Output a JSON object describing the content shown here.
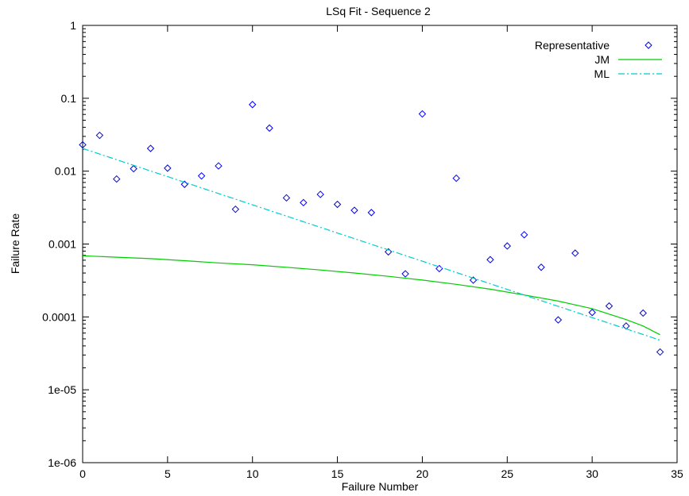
{
  "chart_data": {
    "type": "scatter",
    "title": "LSq Fit - Sequence 2",
    "xlabel": "Failure Number",
    "ylabel": "Failure Rate",
    "xlim": [
      0,
      35
    ],
    "ylim": [
      1e-06,
      1
    ],
    "yscale": "log",
    "grid": false,
    "legend_position": "top-right",
    "x_ticks": [
      0,
      5,
      10,
      15,
      20,
      25,
      30,
      35
    ],
    "x_tick_labels": [
      "0",
      "5",
      "10",
      "15",
      "20",
      "25",
      "30",
      "35"
    ],
    "y_ticks": [
      1e-06,
      1e-05,
      0.0001,
      0.001,
      0.01,
      0.1,
      1
    ],
    "y_tick_labels": [
      "1e-06",
      "1e-05",
      "0.0001",
      "0.001",
      "0.01",
      "0.1",
      "1"
    ],
    "series": [
      {
        "name": "Representative",
        "kind": "points",
        "marker": "diamond",
        "color": "#0000ee",
        "x": [
          0,
          1,
          2,
          3,
          4,
          5,
          6,
          7,
          8,
          9,
          10,
          11,
          12,
          13,
          14,
          15,
          16,
          17,
          18,
          19,
          20,
          21,
          22,
          23,
          24,
          25,
          26,
          27,
          28,
          29,
          30,
          31,
          32,
          33,
          34
        ],
        "y": [
          0.023,
          0.031,
          0.0078,
          0.0108,
          0.0205,
          0.011,
          0.0066,
          0.0086,
          0.0118,
          0.003,
          0.082,
          0.039,
          0.0043,
          0.0037,
          0.0048,
          0.0035,
          0.0029,
          0.0027,
          0.00078,
          0.00039,
          0.061,
          0.00046,
          0.008,
          0.00032,
          0.00061,
          0.00094,
          0.00134,
          0.00048,
          9.1e-05,
          0.00075,
          0.000115,
          0.000141,
          7.5e-05,
          0.000113,
          3.3e-05
        ]
      },
      {
        "name": "JM",
        "kind": "line",
        "dash": "solid",
        "color": "#00cc00",
        "x": [
          0,
          2,
          4,
          6,
          8,
          10,
          12,
          14,
          16,
          18,
          20,
          22,
          24,
          26,
          28,
          30,
          32,
          33,
          34
        ],
        "y": [
          0.00069,
          0.00066,
          0.00063,
          0.00059,
          0.00055,
          0.00052,
          0.00048,
          0.00044,
          0.0004,
          0.00036,
          0.00032,
          0.00028,
          0.00024,
          0.0002,
          0.000165,
          0.00013,
          9.2e-05,
          7.5e-05,
          5.7e-05
        ]
      },
      {
        "name": "ML",
        "kind": "line",
        "dash": "dash-dot",
        "color": "#00cccc",
        "x": [
          0,
          34
        ],
        "y": [
          0.0205,
          4.8e-05
        ]
      }
    ]
  }
}
